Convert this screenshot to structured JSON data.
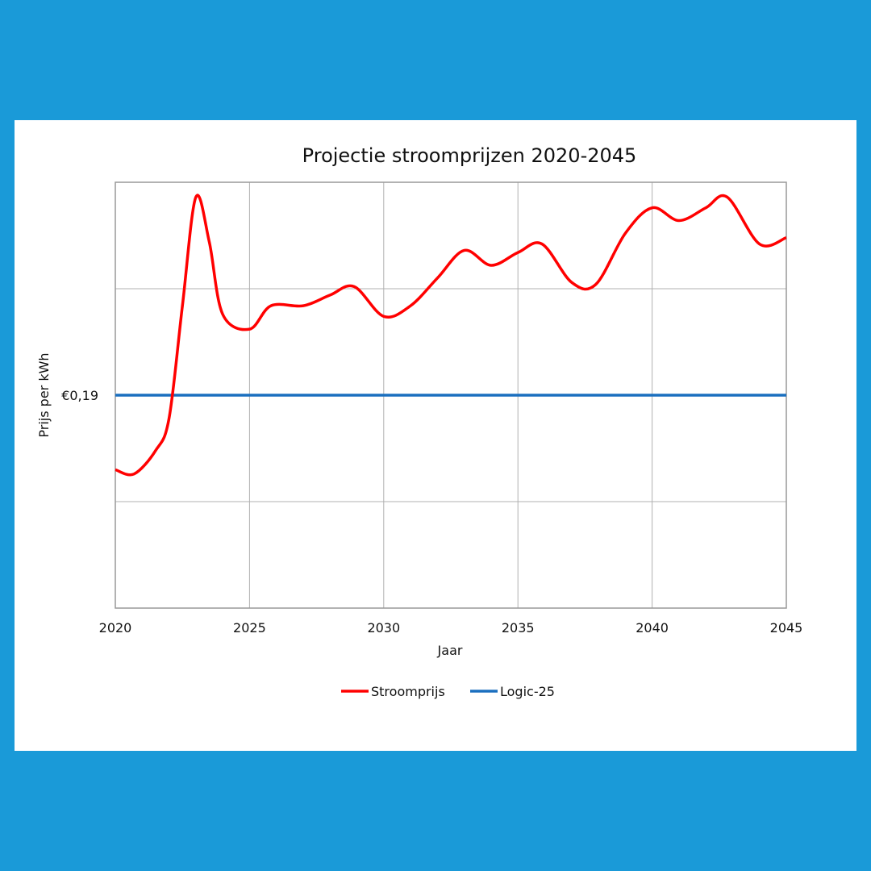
{
  "colors": {
    "background": "#1a9ad8",
    "card": "#ffffff",
    "stroomprijs": "#ff0000",
    "logic25": "#1a6fbf",
    "grid": "#b0b0b0"
  },
  "chart_data": {
    "type": "line",
    "title": "Projectie stroomprijzen 2020-2045",
    "xlabel": "Jaar",
    "ylabel": "Prijs per kWh",
    "xlim": [
      2020,
      2045
    ],
    "ylim": [
      0.09,
      0.29
    ],
    "y_grid_step": 0.05,
    "grid": true,
    "xticks": [
      2020,
      2025,
      2030,
      2035,
      2040,
      2045
    ],
    "ytick_labels": [
      {
        "value": 0.19,
        "label": "€0,19"
      }
    ],
    "legend_position": "bottom-center",
    "series": [
      {
        "name": "Stroomprijs",
        "color": "#ff0000",
        "x": [
          2020,
          2020.7,
          2021.5,
          2022,
          2022.5,
          2023,
          2023.5,
          2024,
          2025,
          2025.8,
          2027,
          2028,
          2028.9,
          2030,
          2031,
          2032,
          2033,
          2034,
          2035,
          2035.9,
          2037,
          2037.9,
          2039,
          2040,
          2041,
          2042,
          2042.8,
          2044,
          2045
        ],
        "y": [
          0.155,
          0.153,
          0.164,
          0.179,
          0.232,
          0.283,
          0.262,
          0.228,
          0.221,
          0.232,
          0.232,
          0.237,
          0.241,
          0.227,
          0.232,
          0.245,
          0.258,
          0.251,
          0.257,
          0.261,
          0.243,
          0.242,
          0.266,
          0.278,
          0.272,
          0.278,
          0.283,
          0.261,
          0.264
        ]
      },
      {
        "name": "Logic-25",
        "color": "#1a6fbf",
        "x": [
          2020,
          2045
        ],
        "y": [
          0.19,
          0.19
        ]
      }
    ]
  }
}
